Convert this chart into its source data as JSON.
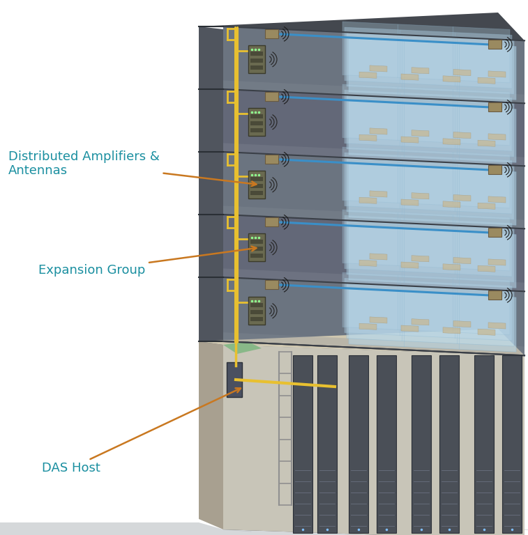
{
  "bg_color": "#ffffff",
  "label_distributed": "Distributed Amplifiers &\nAntennas",
  "label_expansion": "Expansion Group",
  "label_das": "DAS Host",
  "label_fontsize": 13,
  "annotation_color": "#1a8fa0",
  "arrow_color": "#c97820",
  "fig_width": 7.57,
  "fig_height": 7.68,
  "building_front": "#6b7480",
  "building_left": "#50555e",
  "building_roof": "#44484f",
  "floor_line": "#3a3f47",
  "floor_interior": "#757c87",
  "floor_ceiling": "#858c97",
  "glass_fill": "#b8d8ea",
  "glass_edge": "#90b8d0",
  "yellow_cable": "#e8c030",
  "blue_cable": "#3a8fc8",
  "hub_fill": "#7a7a5a",
  "hub_edge": "#4a4a3a",
  "antenna_fill": "#8a8060",
  "server_fill": "#4a4f57",
  "server_edge": "#2a2f37",
  "basement_floor": "#c8c5b8",
  "basement_front": "#b8b0a0",
  "basement_top": "#d0c8b0",
  "ground_fill": "#d5d8da",
  "ground_grid": "#bbbfc3",
  "green_patch": "#88b888",
  "wave_color": "#2a2a2a"
}
